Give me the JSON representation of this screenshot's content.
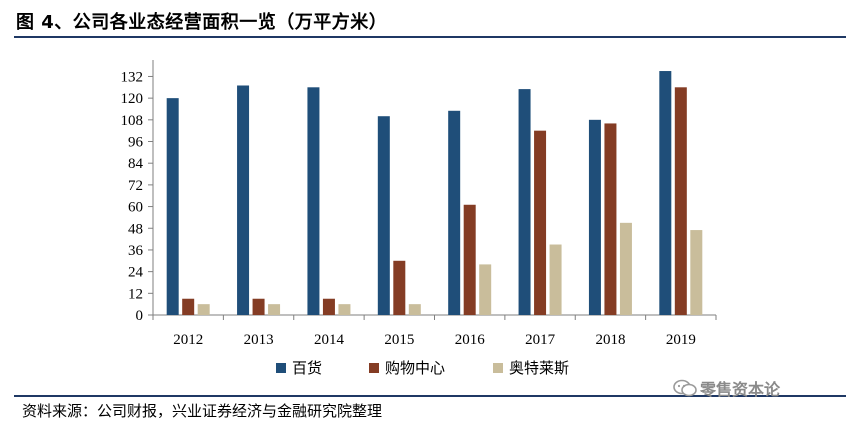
{
  "figure": {
    "title": "图 4、公司各业态经营面积一览（万平方米）",
    "source": "资料来源：公司财报，兴业证券经济与金融研究院整理",
    "watermark": "零售资本论",
    "watermark_icon": "wechat-icon"
  },
  "chart_data": {
    "type": "bar",
    "categories": [
      "2012",
      "2013",
      "2014",
      "2015",
      "2016",
      "2017",
      "2018",
      "2019"
    ],
    "series": [
      {
        "name": "百货",
        "color": "#1f4e79",
        "values": [
          120,
          127,
          126,
          110,
          113,
          125,
          108,
          135
        ]
      },
      {
        "name": "购物中心",
        "color": "#843c24",
        "values": [
          9,
          9,
          9,
          30,
          61,
          102,
          106,
          126
        ]
      },
      {
        "name": "奥特莱斯",
        "color": "#c9bd9b",
        "values": [
          6,
          6,
          6,
          6,
          28,
          39,
          51,
          47
        ]
      }
    ],
    "yticks": [
      "0",
      "12",
      "24",
      "36",
      "48",
      "60",
      "72",
      "84",
      "96",
      "108",
      "120",
      "132"
    ],
    "ylim": [
      0,
      140
    ],
    "legend_position": "bottom",
    "grid": false
  }
}
